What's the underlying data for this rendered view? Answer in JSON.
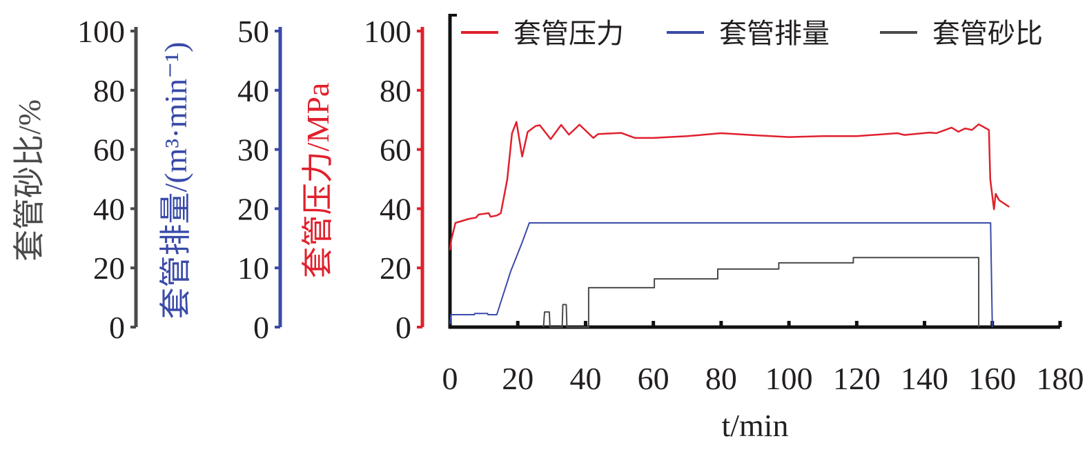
{
  "chart_data": {
    "type": "line",
    "xlabel": "t/min",
    "xlim": [
      0,
      180
    ],
    "xticks": [
      0,
      20,
      40,
      60,
      80,
      100,
      120,
      140,
      160,
      180
    ],
    "grid": false,
    "legend_placement": "top",
    "axes": [
      {
        "id": "sand",
        "label": "套管砂比/%",
        "ylim": [
          0,
          100
        ],
        "ticks": [
          0,
          20,
          40,
          60,
          80,
          100
        ],
        "color": "#4a4a4a"
      },
      {
        "id": "rate",
        "label": "套管排量/(m³·min⁻¹)",
        "ylim": [
          0,
          50
        ],
        "ticks": [
          0,
          10,
          20,
          30,
          40,
          50
        ],
        "color": "#3a4aa8"
      },
      {
        "id": "pressure",
        "label": "套管压力/MPa",
        "ylim": [
          0,
          100
        ],
        "ticks": [
          0,
          20,
          40,
          60,
          80,
          100
        ],
        "color": "#e0202c"
      }
    ],
    "series": [
      {
        "name": "套管压力",
        "axis": "pressure",
        "color": "#e0202c",
        "x": [
          0,
          0.4,
          1.6,
          5.7,
          7.7,
          8.4,
          11.4,
          12,
          13.8,
          15,
          16.9,
          18.3,
          19.6,
          21.3,
          22.9,
          25.2,
          26.5,
          29.7,
          32.8,
          35.1,
          38.2,
          42.3,
          43.7,
          50.5,
          54.6,
          60,
          70,
          80,
          90,
          100,
          110,
          120,
          132,
          134,
          141.5,
          143.5,
          148,
          150,
          152,
          154,
          156,
          159,
          159.4,
          160.5,
          161,
          162,
          165
        ],
        "y": [
          26,
          29.6,
          35.2,
          36.6,
          37,
          38,
          38.5,
          37.3,
          37.7,
          38.5,
          49.9,
          65.5,
          69.3,
          57.6,
          65.9,
          67.9,
          68.2,
          63.5,
          68.3,
          65,
          68.4,
          63.9,
          65.2,
          65.6,
          63.9,
          63.9,
          64.5,
          65.5,
          64.8,
          64.2,
          64.5,
          64.5,
          65.5,
          64.9,
          65.7,
          65.5,
          67.4,
          66,
          67.1,
          66.6,
          68.5,
          66.6,
          50,
          39.8,
          45,
          42.9,
          40.6
        ]
      },
      {
        "name": "套管排量",
        "axis": "rate",
        "color": "#3a4aa8",
        "x": [
          0,
          0.3,
          7.2,
          7.3,
          11.1,
          11.2,
          13.8,
          17.9,
          21.3,
          23.4,
          159.5,
          160
        ],
        "y": [
          0.5,
          2.1,
          2.1,
          2.3,
          2.3,
          2.1,
          2.1,
          9.4,
          14.3,
          17.6,
          17.6,
          0
        ]
      },
      {
        "name": "套管砂比",
        "axis": "sand",
        "color": "#4a4a4a",
        "x": [
          27.6,
          27.9,
          29.3,
          29.5,
          33.1,
          33.3,
          34.3,
          34.5,
          40.9,
          40.9,
          60.3,
          60.3,
          79,
          79,
          97,
          97,
          119,
          119,
          156,
          156
        ],
        "y": [
          0,
          5.1,
          5.1,
          0,
          0,
          7.6,
          7.6,
          0,
          0,
          13.3,
          13.3,
          16.3,
          16.3,
          19.6,
          19.6,
          21.7,
          21.7,
          23.5,
          23.5,
          0
        ]
      }
    ]
  }
}
